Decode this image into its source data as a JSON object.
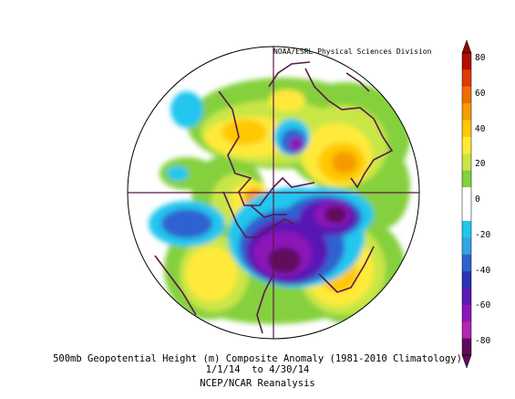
{
  "credit": "NOAA/ESRL Physical Sciences Division",
  "caption": {
    "line1": "500mb Geopotential Height (m) Composite Anomaly (1981-2010 Climatology)",
    "line2": "1/1/14  to 4/30/14",
    "line3": "NCEP/NCAR Reanalysis"
  },
  "colorbar": {
    "labels": [
      "80",
      "60",
      "40",
      "20",
      "0",
      "-20",
      "-40",
      "-60",
      "-80"
    ],
    "colors": [
      "#b10f00",
      "#e03a00",
      "#f06d00",
      "#f59b00",
      "#ffc800",
      "#ffea3a",
      "#c9e646",
      "#84d03e",
      "#ffffff",
      "#ffffff",
      "#20c6ee",
      "#31a5e6",
      "#2e62d0",
      "#2b32b6",
      "#5a18b4",
      "#8c17b8",
      "#b427b0",
      "#5e0a5c"
    ],
    "top_arrow_color": "#8c0a00",
    "bottom_arrow_color": "#5e0a5c"
  }
}
